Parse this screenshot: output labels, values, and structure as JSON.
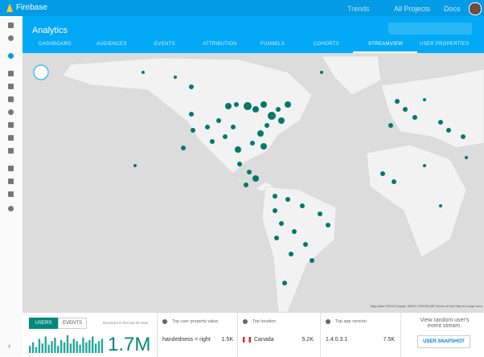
{
  "topbar": {
    "brand": "Firebase",
    "project": "Trends",
    "all_projects": "All Projects",
    "docs": "Docs"
  },
  "header": {
    "title": "Analytics",
    "tabs": [
      "DASHBOARD",
      "AUDIENCES",
      "EVENTS",
      "ATTRIBUTION",
      "FUNNELS",
      "COHORTS",
      "STREAMVIEW",
      "USER PROPERTIES"
    ]
  },
  "map": {
    "attribution": "Map data ©2016 Google, INEGI, ORION-ME  Terms of Use  Report a map error"
  },
  "panel": {
    "users_tab": "USERS",
    "events_tab": "EVENTS",
    "received": "Received in the last 30 mins",
    "total": "1.7M",
    "sparkline": [
      6,
      9,
      5,
      12,
      8,
      14,
      7,
      10,
      13,
      6,
      11,
      9,
      15,
      8,
      12,
      10,
      7,
      13,
      9,
      11,
      14,
      8,
      10,
      12
    ],
    "sections": [
      {
        "title": "Top user property value",
        "label": "handedness = right",
        "value": "1.5K"
      },
      {
        "title": "Top location",
        "label": "Canada",
        "value": "5.2K"
      },
      {
        "title": "Top app version",
        "label": "1.4.0.3.1",
        "value": "7.5K"
      }
    ],
    "snapshot_text": "View random user's event stream.",
    "snapshot_button": "USER SNAPSHOT"
  }
}
